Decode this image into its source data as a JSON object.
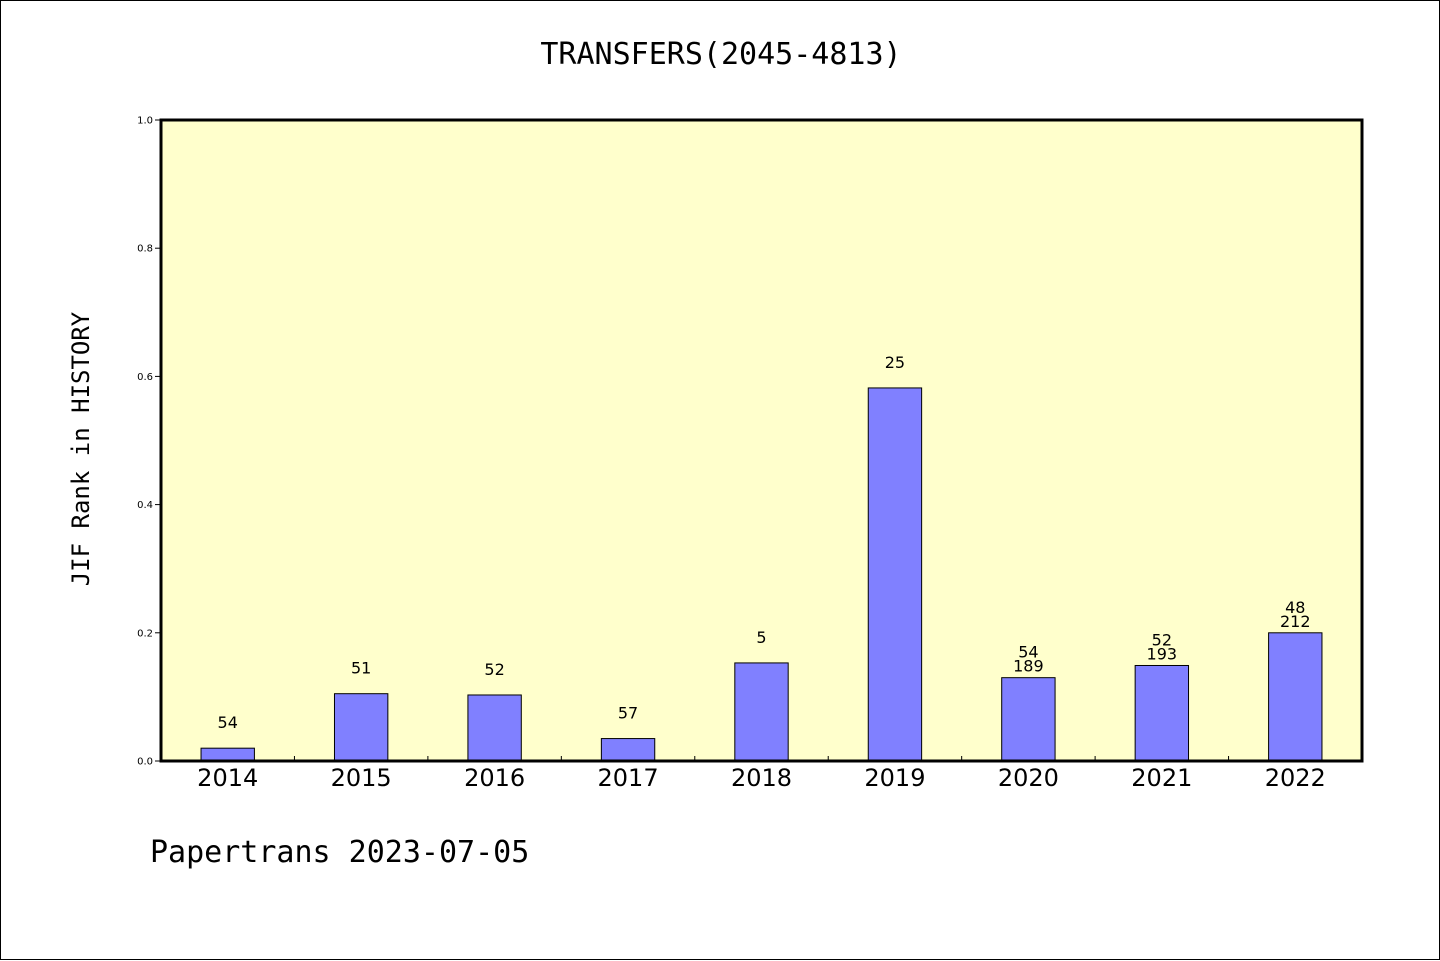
{
  "chart_data": {
    "type": "bar",
    "title": "TRANSFERS(2045-4813)",
    "xlabel": "",
    "ylabel": "JIF Rank in HISTORY",
    "ylim": [
      0,
      1.0
    ],
    "yticks": [
      "0.0",
      "0.2",
      "0.4",
      "0.6",
      "0.8",
      "1.0"
    ],
    "categories": [
      "2014",
      "2015",
      "2016",
      "2017",
      "2018",
      "2019",
      "2020",
      "2021",
      "2022"
    ],
    "values": [
      0.02,
      0.105,
      0.103,
      0.035,
      0.153,
      0.582,
      0.13,
      0.149,
      0.2
    ],
    "bar_labels": [
      [
        "54"
      ],
      [
        "51"
      ],
      [
        "52"
      ],
      [
        "57"
      ],
      [
        "5"
      ],
      [
        "25"
      ],
      [
        "54",
        "189"
      ],
      [
        "52",
        "193"
      ],
      [
        "48",
        "212"
      ]
    ],
    "grid": false,
    "colors": {
      "bar": "#8080ff",
      "plot_background": "#ffffcc",
      "axis": "#000000"
    }
  },
  "footer": {
    "text": "Papertrans 2023-07-05"
  }
}
